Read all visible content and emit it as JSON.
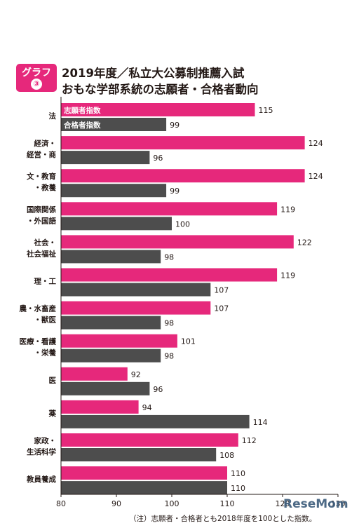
{
  "header": {
    "badge_label": "グラフ",
    "badge_number": "③",
    "title_line1": "2019年度／私立大公募制推薦入試",
    "title_line2": "おもな学部系統の志願者・合格者動向"
  },
  "footnote": "（注）志願者・合格者とも2018年度を100とした指数。",
  "watermark": "ReseMom",
  "colors": {
    "applicants": "#e6287b",
    "passers": "#4d4d4d",
    "axis": "#231815"
  },
  "chart_data": {
    "type": "bar",
    "orientation": "horizontal",
    "categories": [
      [
        "法"
      ],
      [
        "経済・",
        "経営・商"
      ],
      [
        "文・教育",
        "・教養"
      ],
      [
        "国際関係",
        "・外国語"
      ],
      [
        "社会・",
        "社会福祉"
      ],
      [
        "理・工"
      ],
      [
        "農・水畜産",
        "・獣医"
      ],
      [
        "医療・看護",
        "・栄養"
      ],
      [
        "医"
      ],
      [
        "薬"
      ],
      [
        "家政・",
        "生活科学"
      ],
      [
        "教員養成"
      ]
    ],
    "series": [
      {
        "name": "志願者指数",
        "values": [
          115,
          124,
          124,
          119,
          122,
          119,
          107,
          101,
          92,
          94,
          112,
          110
        ]
      },
      {
        "name": "合格者指数",
        "values": [
          99,
          96,
          99,
          100,
          98,
          107,
          98,
          98,
          96,
          114,
          108,
          110
        ]
      }
    ],
    "xlim": [
      80,
      130
    ],
    "xticks": [
      80,
      90,
      100,
      110,
      120,
      130
    ],
    "legend": "inside-first-bars",
    "grid": false
  }
}
